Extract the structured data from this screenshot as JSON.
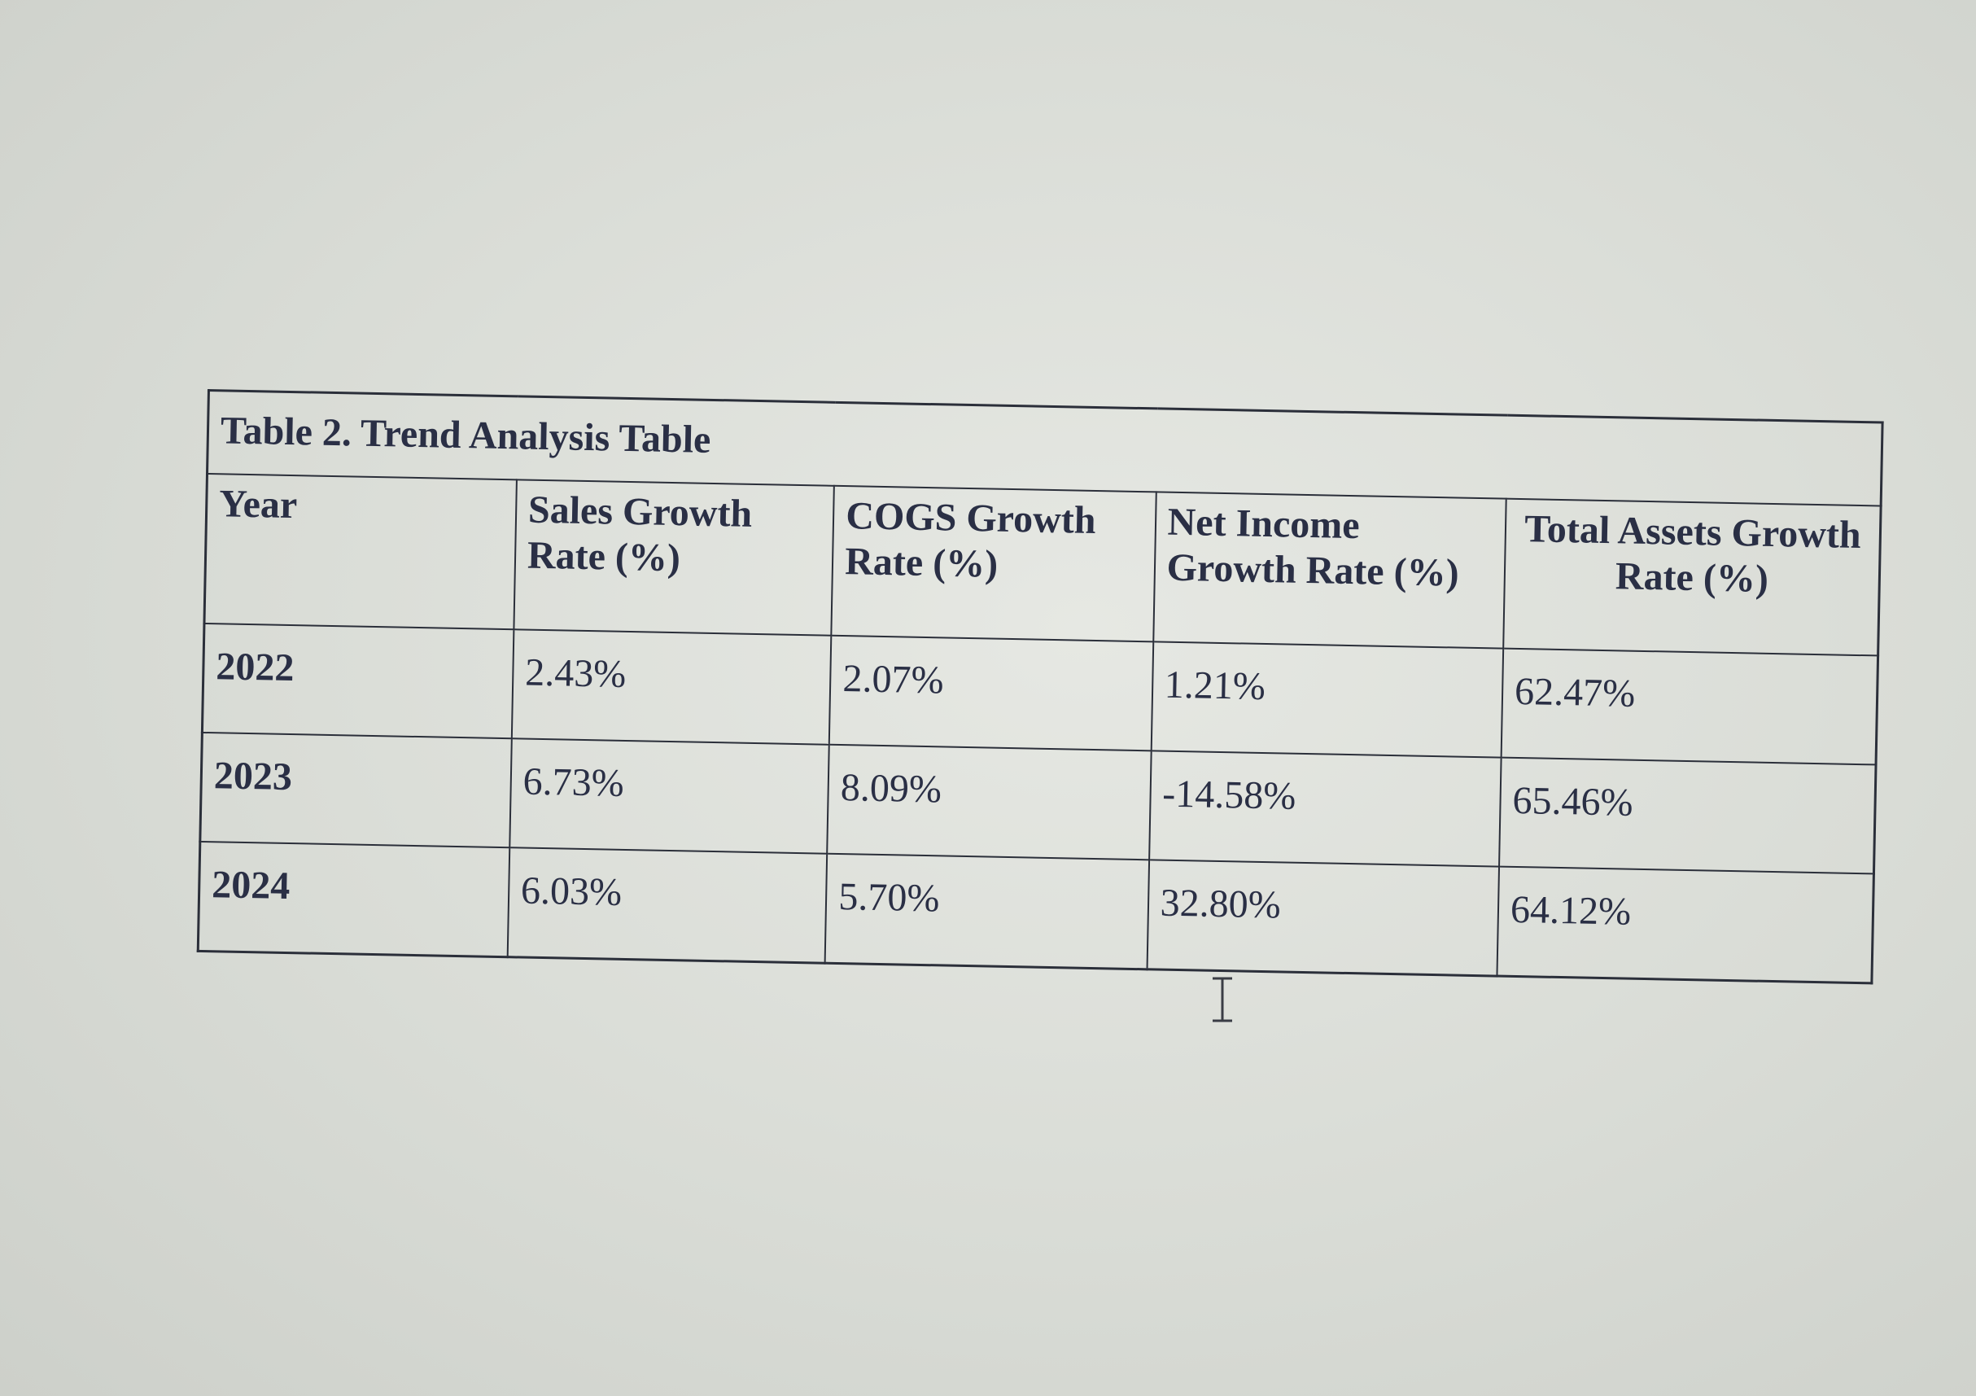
{
  "table": {
    "caption": "Table 2. Trend Analysis Table",
    "headers": [
      "Year",
      "Sales Growth Rate (%)",
      "COGS Growth Rate (%)",
      "Net Income Growth Rate (%)",
      "Total Assets Growth Rate (%)"
    ],
    "rows": [
      [
        "2022",
        "2.43%",
        "2.07%",
        "1.21%",
        "62.47%"
      ],
      [
        "2023",
        "6.73%",
        "8.09%",
        "-14.58%",
        "65.46%"
      ],
      [
        "2024",
        "6.03%",
        "5.70%",
        "32.80%",
        "64.12%"
      ]
    ]
  },
  "cursor": {
    "icon": "text-cursor-icon"
  }
}
